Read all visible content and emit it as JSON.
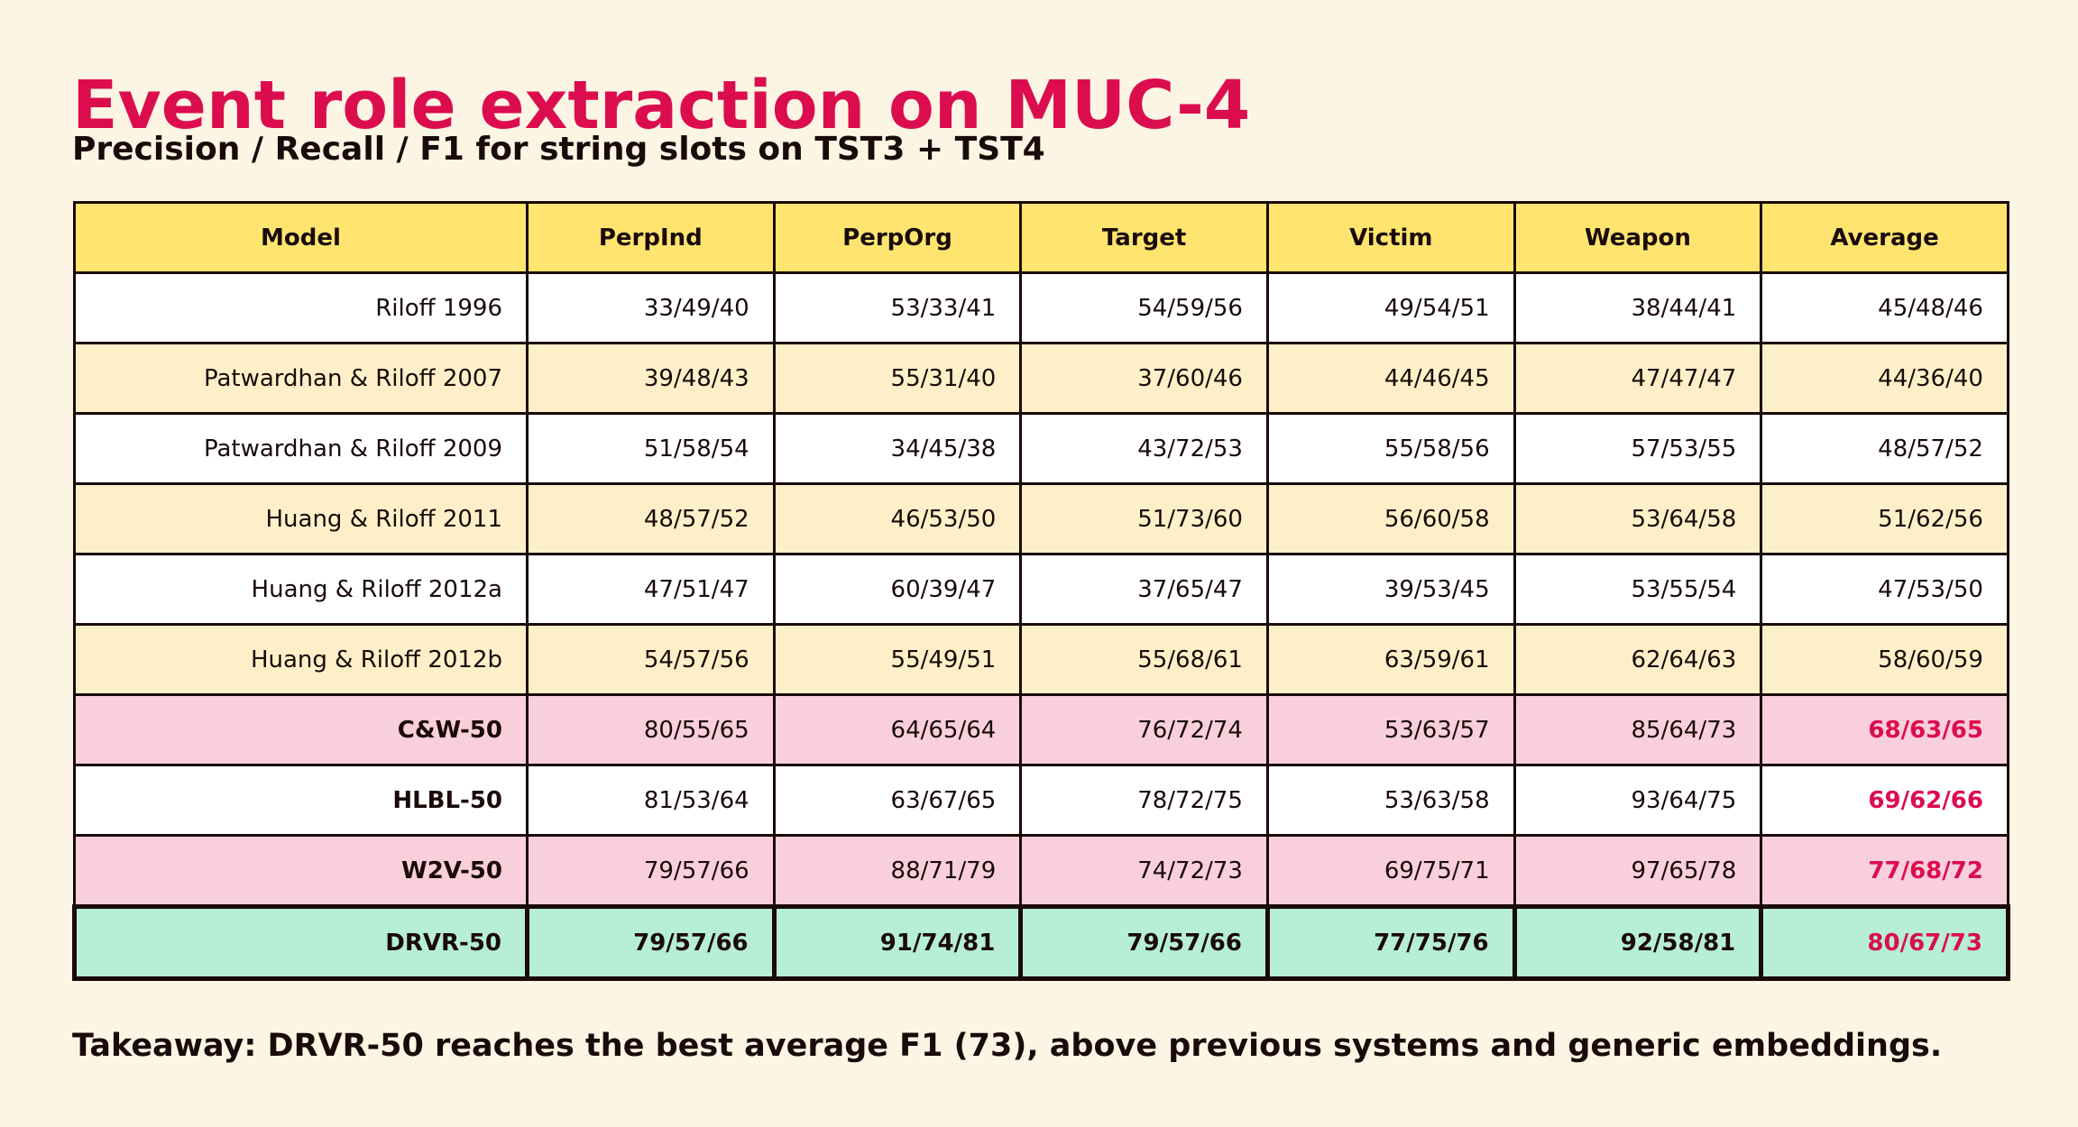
{
  "title": "Event role extraction on MUC-4",
  "subtitle": "Precision / Recall / F1 for string slots on TST3 + TST4",
  "takeaway": "Takeaway: DRVR-50 reaches the best average F1 (73), above previous systems and generic embeddings.",
  "colors": {
    "accent": "#dc0d4f",
    "header_bg": "#ffe56f",
    "row_white": "#ffffff",
    "row_cream": "#fdf0c8",
    "row_pink": "#f9cfdc",
    "row_mint": "#b6eed8",
    "page_bg": "#fdf5e4"
  },
  "chart_data": {
    "type": "table",
    "columns": [
      "Model",
      "PerpInd",
      "PerpOrg",
      "Target",
      "Victim",
      "Weapon",
      "Average"
    ],
    "rows": [
      {
        "model": "Riloff 1996",
        "values": [
          "33/49/40",
          "53/33/41",
          "54/59/56",
          "49/54/51",
          "38/44/41",
          "45/48/46"
        ],
        "style": "white",
        "model_bold": false,
        "avg_accent": false
      },
      {
        "model": "Patwardhan & Riloff 2007",
        "values": [
          "39/48/43",
          "55/31/40",
          "37/60/46",
          "44/46/45",
          "47/47/47",
          "44/36/40"
        ],
        "style": "cream",
        "model_bold": false,
        "avg_accent": false
      },
      {
        "model": "Patwardhan & Riloff 2009",
        "values": [
          "51/58/54",
          "34/45/38",
          "43/72/53",
          "55/58/56",
          "57/53/55",
          "48/57/52"
        ],
        "style": "white",
        "model_bold": false,
        "avg_accent": false
      },
      {
        "model": "Huang & Riloff 2011",
        "values": [
          "48/57/52",
          "46/53/50",
          "51/73/60",
          "56/60/58",
          "53/64/58",
          "51/62/56"
        ],
        "style": "cream",
        "model_bold": false,
        "avg_accent": false
      },
      {
        "model": "Huang & Riloff 2012a",
        "values": [
          "47/51/47",
          "60/39/47",
          "37/65/47",
          "39/53/45",
          "53/55/54",
          "47/53/50"
        ],
        "style": "white",
        "model_bold": false,
        "avg_accent": false
      },
      {
        "model": "Huang & Riloff 2012b",
        "values": [
          "54/57/56",
          "55/49/51",
          "55/68/61",
          "63/59/61",
          "62/64/63",
          "58/60/59"
        ],
        "style": "cream",
        "model_bold": false,
        "avg_accent": false
      },
      {
        "model": "C&W-50",
        "values": [
          "80/55/65",
          "64/65/64",
          "76/72/74",
          "53/63/57",
          "85/64/73",
          "68/63/65"
        ],
        "style": "pink",
        "model_bold": true,
        "avg_accent": true
      },
      {
        "model": "HLBL-50",
        "values": [
          "81/53/64",
          "63/67/65",
          "78/72/75",
          "53/63/58",
          "93/64/75",
          "69/62/66"
        ],
        "style": "white",
        "model_bold": true,
        "avg_accent": true
      },
      {
        "model": "W2V-50",
        "values": [
          "79/57/66",
          "88/71/79",
          "74/72/73",
          "69/75/71",
          "97/65/78",
          "77/68/72"
        ],
        "style": "pink",
        "model_bold": true,
        "avg_accent": true
      },
      {
        "model": "DRVR-50",
        "values": [
          "79/57/66",
          "91/74/81",
          "79/57/66",
          "77/75/76",
          "92/58/81",
          "80/67/73"
        ],
        "style": "mint",
        "model_bold": true,
        "avg_accent": true
      }
    ]
  }
}
